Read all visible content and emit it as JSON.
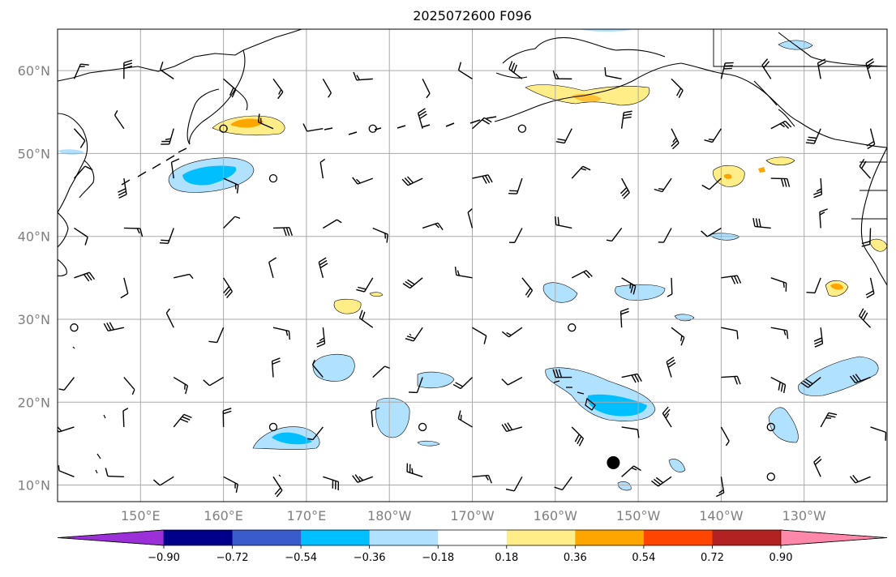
{
  "title": "2025072600 F096",
  "map": {
    "lon_range_east": [
      140,
      240
    ],
    "lat_range": [
      8,
      65
    ],
    "lat_labels": [
      "10°N",
      "20°N",
      "30°N",
      "40°N",
      "50°N",
      "60°N"
    ],
    "lat_values": [
      10,
      20,
      30,
      40,
      50,
      60
    ],
    "lon_labels": [
      "150°E",
      "160°E",
      "170°E",
      "180°W",
      "170°W",
      "160°W",
      "150°W",
      "140°W",
      "130°W"
    ],
    "lon_values": [
      150,
      160,
      170,
      180,
      190,
      200,
      210,
      220,
      230
    ],
    "grid": true,
    "marker": {
      "lon": 207,
      "lat": 12.7,
      "label": ""
    },
    "barb_spacing_deg": 6
  },
  "colorbar": {
    "ticks": [
      "−0.90",
      "−0.72",
      "−0.54",
      "−0.36",
      "−0.18",
      "0.18",
      "0.36",
      "0.54",
      "0.72",
      "0.90"
    ],
    "colors": {
      "under": "#9b30d9",
      "bins": [
        "#00008b",
        "#3a5bcc",
        "#00bfff",
        "#b0e2ff",
        "#ffffff",
        "#ffee88",
        "#ffa500",
        "#ff4500",
        "#b22222"
      ],
      "over": "#ff88aa"
    }
  },
  "colors": {
    "land_line": "#000000",
    "grid": "#aaaaaa",
    "contour_line": "#000000"
  }
}
